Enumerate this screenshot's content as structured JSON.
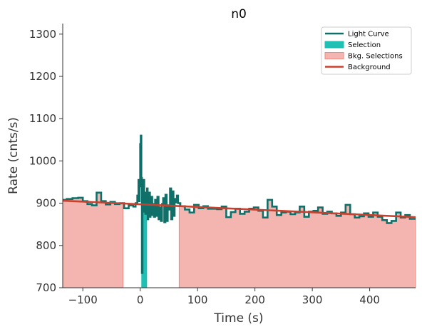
{
  "chart_data": {
    "type": "line",
    "title": "n0",
    "xlabel": "Time (s)",
    "ylabel": "Rate (cnts/s)",
    "xlim": [
      -135,
      480
    ],
    "ylim": [
      700,
      1325
    ],
    "xticks": [
      -100,
      0,
      100,
      200,
      300,
      400
    ],
    "yticks": [
      700,
      800,
      900,
      1000,
      1100,
      1200,
      1300
    ],
    "xtick_labels": [
      "−100",
      "0",
      "100",
      "200",
      "300",
      "400"
    ],
    "ytick_labels": [
      "700",
      "800",
      "900",
      "1000",
      "1100",
      "1200",
      "1300"
    ],
    "grid": false,
    "legend_position": "top-right",
    "colors": {
      "light_curve": "#0e7069",
      "selection": "#1fbfb3",
      "bkg_selection": "#f4b5b0",
      "bkg_selection_edge": "#ee8a82",
      "background": "#c8412e"
    },
    "series": [
      {
        "name": "Light Curve",
        "kind": "step",
        "bins": [
          [
            -135,
            -128,
            908
          ],
          [
            -128,
            -118,
            910
          ],
          [
            -118,
            -108,
            912
          ],
          [
            -108,
            -100,
            913
          ],
          [
            -100,
            -92,
            905
          ],
          [
            -92,
            -84,
            898
          ],
          [
            -84,
            -76,
            895
          ],
          [
            -76,
            -68,
            925
          ],
          [
            -68,
            -60,
            905
          ],
          [
            -60,
            -52,
            897
          ],
          [
            -52,
            -44,
            903
          ],
          [
            -44,
            -36,
            898
          ],
          [
            -36,
            -28,
            900
          ],
          [
            -28,
            -20,
            888
          ],
          [
            -20,
            -12,
            895
          ],
          [
            -12,
            -8,
            892
          ],
          [
            -8,
            -5,
            900
          ],
          [
            -5,
            -3,
            918
          ],
          [
            -3,
            -2,
            955
          ],
          [
            -2,
            -1,
            905
          ],
          [
            -1,
            0,
            940
          ],
          [
            0,
            1,
            1040
          ],
          [
            1,
            2,
            1060
          ],
          [
            2,
            3,
            960
          ],
          [
            3,
            4,
            735
          ],
          [
            4,
            5,
            920
          ],
          [
            5,
            6,
            880
          ],
          [
            6,
            7,
            955
          ],
          [
            7,
            8,
            895
          ],
          [
            8,
            9,
            925
          ],
          [
            9,
            10,
            875
          ],
          [
            10,
            11,
            905
          ],
          [
            11,
            12,
            885
          ],
          [
            12,
            13,
            935
          ],
          [
            13,
            14,
            862
          ],
          [
            14,
            15,
            900
          ],
          [
            15,
            16,
            870
          ],
          [
            16,
            17,
            925
          ],
          [
            17,
            18,
            868
          ],
          [
            18,
            19,
            905
          ],
          [
            19,
            20,
            880
          ],
          [
            20,
            21,
            915
          ],
          [
            21,
            22,
            872
          ],
          [
            22,
            24,
            898
          ],
          [
            24,
            26,
            868
          ],
          [
            26,
            28,
            908
          ],
          [
            28,
            30,
            870
          ],
          [
            30,
            32,
            915
          ],
          [
            32,
            34,
            862
          ],
          [
            34,
            36,
            890
          ],
          [
            36,
            38,
            858
          ],
          [
            38,
            40,
            898
          ],
          [
            40,
            42,
            912
          ],
          [
            42,
            44,
            855
          ],
          [
            44,
            46,
            920
          ],
          [
            46,
            48,
            858
          ],
          [
            48,
            50,
            895
          ],
          [
            50,
            52,
            885
          ],
          [
            52,
            54,
            935
          ],
          [
            54,
            56,
            862
          ],
          [
            56,
            58,
            928
          ],
          [
            58,
            60,
            870
          ],
          [
            60,
            62,
            910
          ],
          [
            62,
            64,
            902
          ],
          [
            64,
            66,
            918
          ],
          [
            66,
            70,
            900
          ],
          [
            70,
            78,
            893
          ],
          [
            78,
            86,
            885
          ],
          [
            86,
            94,
            878
          ],
          [
            94,
            102,
            896
          ],
          [
            102,
            110,
            888
          ],
          [
            110,
            118,
            893
          ],
          [
            118,
            126,
            887
          ],
          [
            126,
            134,
            887
          ],
          [
            134,
            142,
            886
          ],
          [
            142,
            150,
            892
          ],
          [
            150,
            158,
            867
          ],
          [
            158,
            166,
            879
          ],
          [
            166,
            174,
            887
          ],
          [
            174,
            182,
            875
          ],
          [
            182,
            190,
            880
          ],
          [
            190,
            198,
            887
          ],
          [
            198,
            206,
            890
          ],
          [
            206,
            214,
            882
          ],
          [
            214,
            222,
            866
          ],
          [
            222,
            230,
            908
          ],
          [
            230,
            238,
            892
          ],
          [
            238,
            246,
            872
          ],
          [
            246,
            254,
            878
          ],
          [
            254,
            262,
            880
          ],
          [
            262,
            270,
            874
          ],
          [
            270,
            278,
            878
          ],
          [
            278,
            286,
            892
          ],
          [
            286,
            294,
            868
          ],
          [
            294,
            302,
            880
          ],
          [
            302,
            310,
            882
          ],
          [
            310,
            318,
            890
          ],
          [
            318,
            326,
            875
          ],
          [
            326,
            334,
            880
          ],
          [
            334,
            342,
            876
          ],
          [
            342,
            350,
            870
          ],
          [
            350,
            358,
            878
          ],
          [
            358,
            366,
            896
          ],
          [
            366,
            374,
            874
          ],
          [
            374,
            382,
            866
          ],
          [
            382,
            390,
            869
          ],
          [
            390,
            398,
            876
          ],
          [
            398,
            406,
            868
          ],
          [
            406,
            414,
            878
          ],
          [
            414,
            422,
            868
          ],
          [
            422,
            430,
            860
          ],
          [
            430,
            438,
            853
          ],
          [
            438,
            446,
            858
          ],
          [
            446,
            454,
            878
          ],
          [
            454,
            462,
            866
          ],
          [
            462,
            470,
            872
          ],
          [
            470,
            480,
            863
          ]
        ]
      },
      {
        "name": "Selection",
        "kind": "filled_step",
        "range": [
          2,
          12
        ],
        "bins": [
          [
            2,
            3,
            960
          ],
          [
            3,
            4,
            735
          ],
          [
            4,
            5,
            920
          ],
          [
            5,
            6,
            880
          ],
          [
            6,
            7,
            955
          ],
          [
            7,
            8,
            895
          ],
          [
            8,
            9,
            925
          ],
          [
            9,
            10,
            875
          ],
          [
            10,
            11,
            905
          ],
          [
            11,
            12,
            885
          ]
        ]
      },
      {
        "name": "Bkg. Selections",
        "kind": "filled_intervals",
        "intervals": [
          [
            -135,
            -30
          ],
          [
            68,
            480
          ]
        ]
      },
      {
        "name": "Background",
        "kind": "line",
        "x": [
          -135,
          480
        ],
        "y": [
          906,
          867
        ]
      }
    ]
  }
}
